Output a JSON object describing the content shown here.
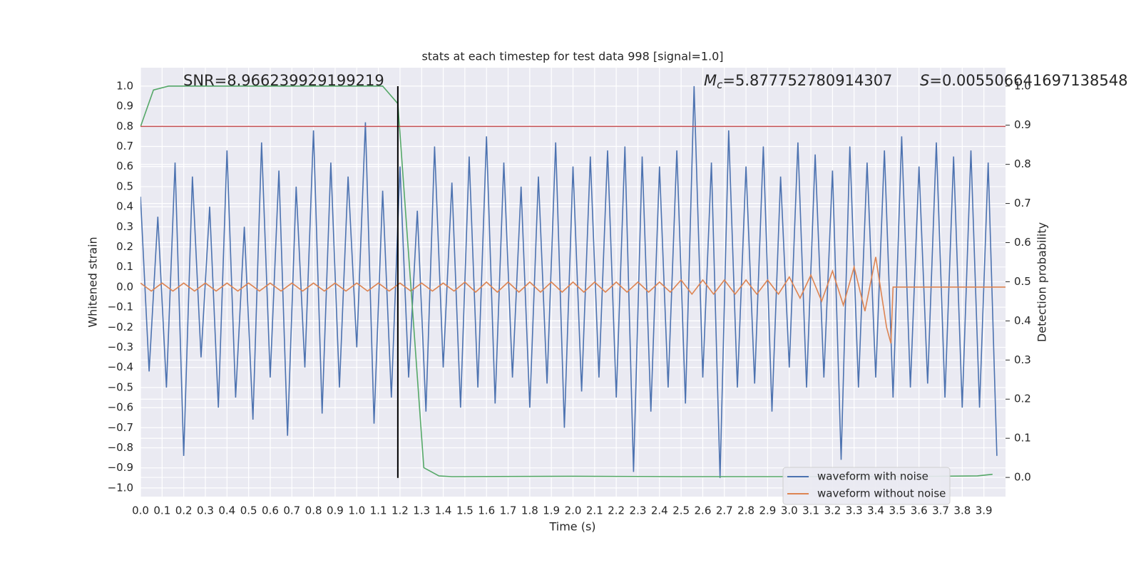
{
  "chart_data": {
    "type": "line",
    "title": "stats at each timestep for test data 998 [signal=1.0]",
    "xlabel": "Time (s)",
    "ylabel": "Whitened strain",
    "y2label": "Detection probability",
    "annotations": [
      {
        "text": "SNR=8.966239929199219"
      },
      {
        "symbol": "M",
        "subscript": "c",
        "text": "=5.877752780914307"
      },
      {
        "symbol": "S",
        "text": "=0.005506641697138548"
      }
    ],
    "xlim": [
      0,
      4.0
    ],
    "ylim": [
      -1.043,
      1.092
    ],
    "y2lim": [
      -0.049,
      1.047
    ],
    "grid": true,
    "background": "#eaeaf2",
    "legend": "best",
    "xticks": [
      {
        "value": 0.0,
        "label": "0.0"
      },
      {
        "value": 0.1,
        "label": "0.1"
      },
      {
        "value": 0.2,
        "label": "0.2"
      },
      {
        "value": 0.3,
        "label": "0.3"
      },
      {
        "value": 0.4,
        "label": "0.4"
      },
      {
        "value": 0.5,
        "label": "0.5"
      },
      {
        "value": 0.6,
        "label": "0.6"
      },
      {
        "value": 0.7,
        "label": "0.7"
      },
      {
        "value": 0.8,
        "label": "0.8"
      },
      {
        "value": 0.9,
        "label": "0.9"
      },
      {
        "value": 1.0,
        "label": "1.0"
      },
      {
        "value": 1.1,
        "label": "1.1"
      },
      {
        "value": 1.2,
        "label": "1.2"
      },
      {
        "value": 1.3,
        "label": "1.3"
      },
      {
        "value": 1.4,
        "label": "1.4"
      },
      {
        "value": 1.5,
        "label": "1.5"
      },
      {
        "value": 1.6,
        "label": "1.6"
      },
      {
        "value": 1.7,
        "label": "1.7"
      },
      {
        "value": 1.8,
        "label": "1.8"
      },
      {
        "value": 1.9,
        "label": "1.9"
      },
      {
        "value": 2.0,
        "label": "2.0"
      },
      {
        "value": 2.1,
        "label": "2.1"
      },
      {
        "value": 2.2,
        "label": "2.2"
      },
      {
        "value": 2.3,
        "label": "2.3"
      },
      {
        "value": 2.4,
        "label": "2.4"
      },
      {
        "value": 2.5,
        "label": "2.5"
      },
      {
        "value": 2.6,
        "label": "2.6"
      },
      {
        "value": 2.7,
        "label": "2.7"
      },
      {
        "value": 2.8,
        "label": "2.8"
      },
      {
        "value": 2.9,
        "label": "2.9"
      },
      {
        "value": 3.0,
        "label": "3.0"
      },
      {
        "value": 3.1,
        "label": "3.1"
      },
      {
        "value": 3.2,
        "label": "3.2"
      },
      {
        "value": 3.3,
        "label": "3.3"
      },
      {
        "value": 3.4,
        "label": "3.4"
      },
      {
        "value": 3.5,
        "label": "3.5"
      },
      {
        "value": 3.6,
        "label": "3.6"
      },
      {
        "value": 3.7,
        "label": "3.7"
      },
      {
        "value": 3.8,
        "label": "3.8"
      },
      {
        "value": 3.9,
        "label": "3.9"
      }
    ],
    "yticks": [
      {
        "value": -1.0,
        "label": "−1.0"
      },
      {
        "value": -0.9,
        "label": "−0.9"
      },
      {
        "value": -0.8,
        "label": "−0.8"
      },
      {
        "value": -0.7,
        "label": "−0.7"
      },
      {
        "value": -0.6,
        "label": "−0.6"
      },
      {
        "value": -0.5,
        "label": "−0.5"
      },
      {
        "value": -0.4,
        "label": "−0.4"
      },
      {
        "value": -0.3,
        "label": "−0.3"
      },
      {
        "value": -0.2,
        "label": "−0.2"
      },
      {
        "value": -0.1,
        "label": "−0.1"
      },
      {
        "value": 0.0,
        "label": "0.0"
      },
      {
        "value": 0.1,
        "label": "0.1"
      },
      {
        "value": 0.2,
        "label": "0.2"
      },
      {
        "value": 0.3,
        "label": "0.3"
      },
      {
        "value": 0.4,
        "label": "0.4"
      },
      {
        "value": 0.5,
        "label": "0.5"
      },
      {
        "value": 0.6,
        "label": "0.6"
      },
      {
        "value": 0.7,
        "label": "0.7"
      },
      {
        "value": 0.8,
        "label": "0.8"
      },
      {
        "value": 0.9,
        "label": "0.9"
      },
      {
        "value": 1.0,
        "label": "1.0"
      }
    ],
    "y2ticks": [
      {
        "value": 0.0,
        "label": "0.0"
      },
      {
        "value": 0.1,
        "label": "0.1"
      },
      {
        "value": 0.2,
        "label": "0.2"
      },
      {
        "value": 0.3,
        "label": "0.3"
      },
      {
        "value": 0.4,
        "label": "0.4"
      },
      {
        "value": 0.5,
        "label": "0.5"
      },
      {
        "value": 0.6,
        "label": "0.6"
      },
      {
        "value": 0.7,
        "label": "0.7"
      },
      {
        "value": 0.8,
        "label": "0.8"
      },
      {
        "value": 0.9,
        "label": "0.9"
      },
      {
        "value": 1.0,
        "label": "1.0"
      }
    ],
    "series": [
      {
        "name": "waveform with noise",
        "color": "#4c72b0",
        "x": [
          0,
          0.04,
          0.08,
          0.12,
          0.16,
          0.2,
          0.24,
          0.28,
          0.32,
          0.36,
          0.4,
          0.44,
          0.48,
          0.52,
          0.56,
          0.6,
          0.64,
          0.68,
          0.72,
          0.76,
          0.8,
          0.84,
          0.88,
          0.92,
          0.96,
          1.0,
          1.04,
          1.08,
          1.12,
          1.16,
          1.2,
          1.24,
          1.28,
          1.32,
          1.36,
          1.4,
          1.44,
          1.48,
          1.52,
          1.56,
          1.6,
          1.64,
          1.68,
          1.72,
          1.76,
          1.8,
          1.84,
          1.88,
          1.92,
          1.96,
          2.0,
          2.04,
          2.08,
          2.12,
          2.16,
          2.2,
          2.24,
          2.28,
          2.32,
          2.36,
          2.4,
          2.44,
          2.48,
          2.52,
          2.56,
          2.6,
          2.64,
          2.68,
          2.72,
          2.76,
          2.8,
          2.84,
          2.88,
          2.92,
          2.96,
          3.0,
          3.04,
          3.08,
          3.12,
          3.16,
          3.2,
          3.24,
          3.28,
          3.32,
          3.36,
          3.4,
          3.44,
          3.48,
          3.52,
          3.56,
          3.6,
          3.64,
          3.68,
          3.72,
          3.76,
          3.8,
          3.84,
          3.88,
          3.92,
          3.96
        ],
        "values": [
          0.45,
          -0.42,
          0.35,
          -0.5,
          0.62,
          -0.84,
          0.55,
          -0.35,
          0.4,
          -0.6,
          0.68,
          -0.55,
          0.3,
          -0.66,
          0.72,
          -0.45,
          0.58,
          -0.74,
          0.5,
          -0.4,
          0.78,
          -0.63,
          0.62,
          -0.5,
          0.55,
          -0.3,
          0.82,
          -0.68,
          0.48,
          -0.55,
          0.6,
          -0.45,
          0.38,
          -0.62,
          0.7,
          -0.4,
          0.52,
          -0.6,
          0.65,
          -0.5,
          0.75,
          -0.58,
          0.62,
          -0.45,
          0.5,
          -0.6,
          0.55,
          -0.48,
          0.72,
          -0.7,
          0.6,
          -0.52,
          0.65,
          -0.45,
          0.68,
          -0.55,
          0.7,
          -0.92,
          0.65,
          -0.62,
          0.6,
          -0.5,
          0.68,
          -0.58,
          1.0,
          -0.45,
          0.62,
          -0.95,
          0.78,
          -0.5,
          0.6,
          -0.48,
          0.7,
          -0.62,
          0.55,
          -0.4,
          0.72,
          -0.5,
          0.66,
          -0.45,
          0.58,
          -0.86,
          0.7,
          -0.5,
          0.62,
          -0.45,
          0.68,
          -0.55,
          0.75,
          -0.5,
          0.6,
          -0.48,
          0.72,
          -0.55,
          0.65,
          -0.6,
          0.68,
          -0.6,
          0.62,
          -0.84
        ]
      },
      {
        "name": "waveform without noise",
        "color": "#dd8452",
        "x": [
          0,
          0.05,
          0.1,
          0.15,
          0.2,
          0.25,
          0.3,
          0.35,
          0.4,
          0.45,
          0.5,
          0.55,
          0.6,
          0.65,
          0.7,
          0.75,
          0.8,
          0.85,
          0.9,
          0.95,
          1.0,
          1.05,
          1.1,
          1.15,
          1.2,
          1.25,
          1.3,
          1.35,
          1.4,
          1.45,
          1.5,
          1.55,
          1.6,
          1.65,
          1.7,
          1.75,
          1.8,
          1.85,
          1.9,
          1.95,
          2.0,
          2.05,
          2.1,
          2.15,
          2.2,
          2.25,
          2.3,
          2.35,
          2.4,
          2.45,
          2.5,
          2.55,
          2.6,
          2.65,
          2.7,
          2.75,
          2.8,
          2.85,
          2.9,
          2.95,
          3.0,
          3.05,
          3.1,
          3.15,
          3.2,
          3.25,
          3.3,
          3.35,
          3.4,
          3.45,
          3.47,
          3.48,
          4.0
        ],
        "values": [
          0.02,
          -0.02,
          0.02,
          -0.02,
          0.02,
          -0.02,
          0.02,
          -0.02,
          0.02,
          -0.02,
          0.02,
          -0.02,
          0.02,
          -0.02,
          0.02,
          -0.02,
          0.02,
          -0.02,
          0.02,
          -0.02,
          0.02,
          -0.02,
          0.02,
          -0.02,
          0.02,
          -0.02,
          0.02,
          -0.02,
          0.02,
          -0.02,
          0.025,
          -0.025,
          0.025,
          -0.025,
          0.025,
          -0.025,
          0.025,
          -0.025,
          0.025,
          -0.025,
          0.025,
          -0.025,
          0.025,
          -0.025,
          0.025,
          -0.025,
          0.025,
          -0.025,
          0.025,
          -0.025,
          0.035,
          -0.035,
          0.035,
          -0.035,
          0.035,
          -0.035,
          0.035,
          -0.035,
          0.035,
          -0.035,
          0.05,
          -0.055,
          0.06,
          -0.07,
          0.08,
          -0.09,
          0.1,
          -0.12,
          0.15,
          -0.2,
          -0.28,
          0,
          0
        ]
      },
      {
        "color": "#55a868",
        "axis": "y2",
        "x": [
          0.0,
          0.06,
          0.13,
          1.12,
          1.19,
          1.31,
          1.38,
          1.44,
          2.0,
          2.5,
          3.0,
          3.5,
          3.87,
          3.94
        ],
        "values": [
          0.896,
          0.99,
          1.0,
          1.0,
          0.955,
          0.025,
          0.004,
          0.002,
          0.003,
          0.002,
          0.002,
          0.002,
          0.004,
          0.008
        ]
      }
    ],
    "hlines": [
      {
        "value": 0.8,
        "color": "#c44e52"
      }
    ],
    "vlines": [
      {
        "x": 1.19,
        "ymin": -0.95,
        "ymax": 1.0,
        "color": "#000000"
      }
    ]
  }
}
